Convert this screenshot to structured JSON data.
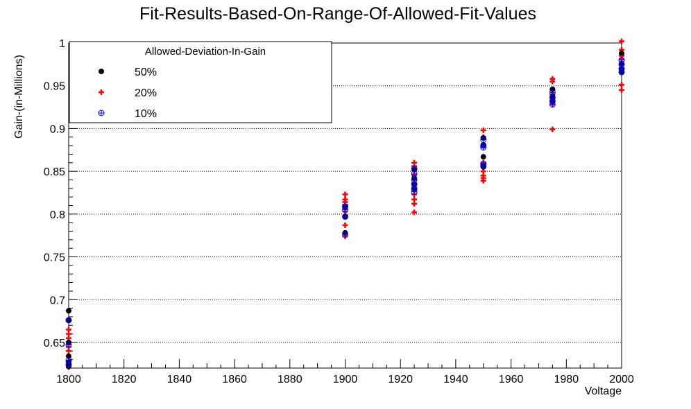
{
  "chart_data": {
    "type": "scatter",
    "title": "Fit-Results-Based-On-Range-Of-Allowed-Fit-Values",
    "xlabel": "Voltage",
    "ylabel": "Gain-(in-Millions)",
    "xlim": [
      1800,
      2000
    ],
    "ylim": [
      0.62,
      1.0
    ],
    "x_ticks": [
      1800,
      1820,
      1840,
      1860,
      1880,
      1900,
      1920,
      1940,
      1960,
      1980,
      2000
    ],
    "y_ticks": [
      0.65,
      0.7,
      0.75,
      0.8,
      0.85,
      0.9,
      0.95,
      1
    ],
    "grid": "horizontal dotted",
    "legend": {
      "title": "Allowed-Deviation-In-Gain",
      "position": "top-left"
    },
    "series": [
      {
        "name": "50%",
        "marker": "filled-circle",
        "color": "#000000",
        "x": [
          1800,
          1800,
          1800,
          1800,
          1800,
          1800,
          1900,
          1900,
          1900,
          1925,
          1925,
          1925,
          1925,
          1950,
          1950,
          1950,
          1950,
          1950,
          1975,
          1975,
          1975,
          2000,
          2000,
          2000,
          2000
        ],
        "y": [
          0.687,
          0.676,
          0.65,
          0.634,
          0.627,
          0.622,
          0.808,
          0.797,
          0.778,
          0.852,
          0.842,
          0.835,
          0.829,
          0.889,
          0.881,
          0.867,
          0.857,
          0.855,
          0.946,
          0.938,
          0.932,
          0.988,
          0.976,
          0.969,
          0.966
        ]
      },
      {
        "name": "20%",
        "marker": "plus",
        "color": "#ff0000",
        "x": [
          1800,
          1800,
          1800,
          1800,
          1800,
          1800,
          1800,
          1800,
          1800,
          1900,
          1900,
          1900,
          1900,
          1900,
          1900,
          1900,
          1900,
          1900,
          1900,
          1925,
          1925,
          1925,
          1925,
          1925,
          1925,
          1925,
          1925,
          1925,
          1925,
          1925,
          1950,
          1950,
          1950,
          1950,
          1950,
          1950,
          1950,
          1950,
          1975,
          1975,
          1975,
          1975,
          1975,
          1975,
          1975,
          2000,
          2000,
          2000,
          2000,
          2000,
          2000,
          2000,
          2000
        ],
        "y": [
          0.665,
          0.66,
          0.655,
          0.65,
          0.645,
          0.64,
          0.628,
          0.624,
          0.621,
          0.823,
          0.817,
          0.814,
          0.811,
          0.807,
          0.803,
          0.798,
          0.787,
          0.778,
          0.774,
          0.86,
          0.856,
          0.851,
          0.846,
          0.84,
          0.834,
          0.828,
          0.823,
          0.817,
          0.812,
          0.802,
          0.898,
          0.89,
          0.88,
          0.86,
          0.85,
          0.845,
          0.842,
          0.839,
          0.958,
          0.955,
          0.945,
          0.94,
          0.935,
          0.928,
          0.899,
          1.002,
          0.992,
          0.988,
          0.985,
          0.981,
          0.975,
          0.951,
          0.945
        ]
      },
      {
        "name": "10%",
        "marker": "open-circle-cross",
        "color": "#0000ff",
        "x": [
          1800,
          1800,
          1800,
          1800,
          1900,
          1900,
          1900,
          1900,
          1925,
          1925,
          1925,
          1925,
          1925,
          1925,
          1950,
          1950,
          1950,
          1950,
          1950,
          1975,
          1975,
          1975,
          1975,
          2000,
          2000,
          2000,
          2000
        ],
        "y": [
          0.676,
          0.647,
          0.629,
          0.624,
          0.809,
          0.805,
          0.797,
          0.776,
          0.853,
          0.847,
          0.84,
          0.835,
          0.83,
          0.826,
          0.887,
          0.88,
          0.878,
          0.859,
          0.856,
          0.942,
          0.936,
          0.932,
          0.928,
          0.98,
          0.975,
          0.97,
          0.966
        ]
      }
    ]
  }
}
